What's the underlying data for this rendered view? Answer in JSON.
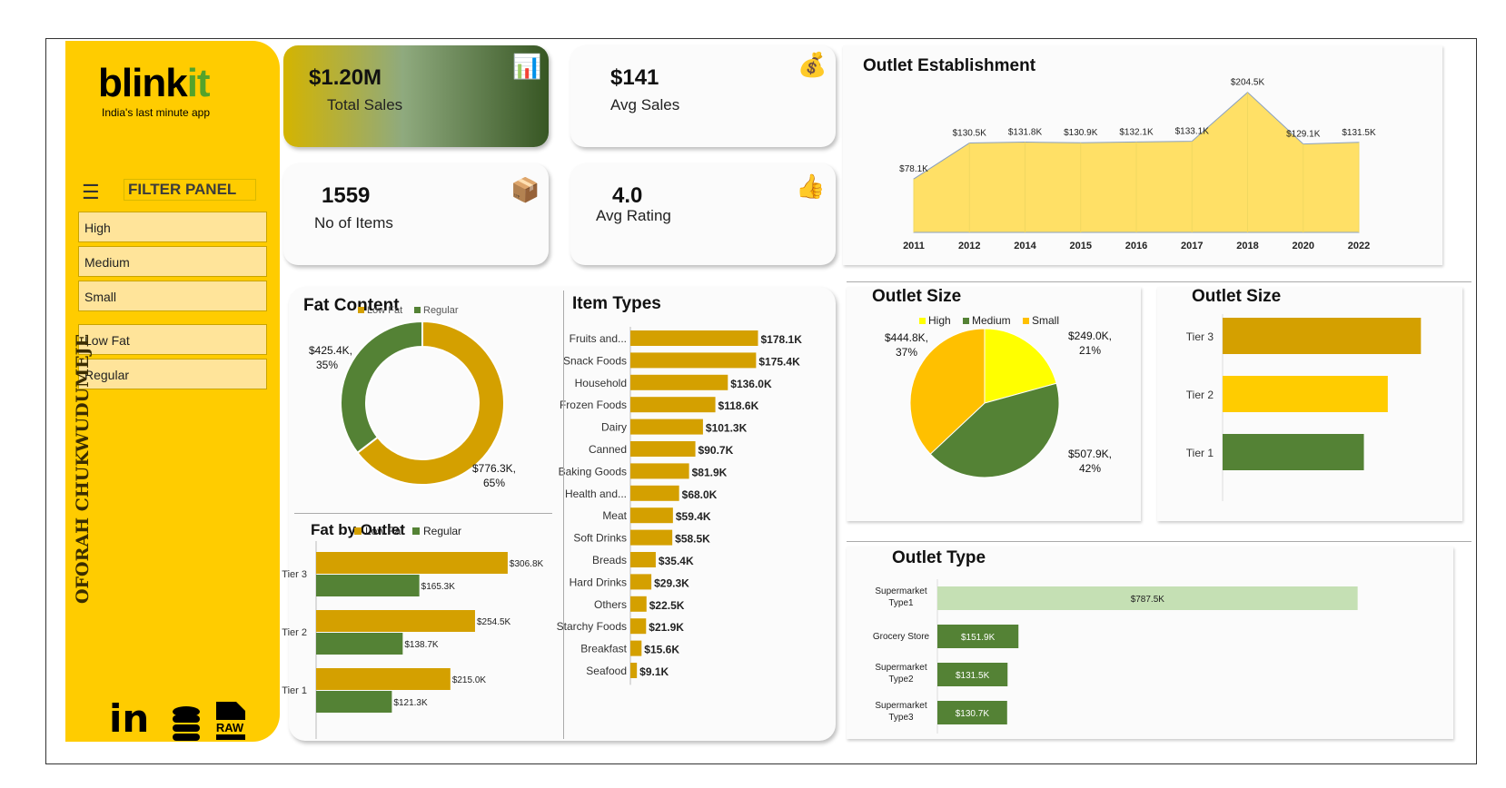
{
  "sidebar": {
    "brand": {
      "main": "blink",
      "accent": "it"
    },
    "tagline": "India's last minute app",
    "filter_title": "FILTER PANEL",
    "filters": [
      "High",
      "Medium",
      "Small",
      "Low Fat",
      "Regular"
    ],
    "author": "OFORAH CHUKWUDUMEJE",
    "social": {
      "linkedin": "in",
      "raw": "RAW"
    }
  },
  "kpis": {
    "total_sales": {
      "value": "$1.20M",
      "label": "Total Sales"
    },
    "avg_sales": {
      "value": "$141",
      "label": "Avg Sales"
    },
    "items": {
      "value": "1559",
      "label": "No of Items"
    },
    "rating": {
      "value": "4.0",
      "label": "Avg Rating"
    }
  },
  "colors": {
    "yellow": "#ffcc00",
    "gold": "#d4a000",
    "green": "#548235",
    "light_green": "#c5e0b4",
    "pale_yellow": "#ffe066",
    "bright_yellow": "#ffff00",
    "orange_yellow": "#ffc000"
  },
  "chart_data": [
    {
      "id": "outlet_establishment",
      "type": "area",
      "title": "Outlet Establishment",
      "categories": [
        "2011",
        "2012",
        "2014",
        "2015",
        "2016",
        "2017",
        "2018",
        "2020",
        "2022"
      ],
      "values": [
        78.1,
        130.5,
        131.8,
        130.9,
        132.1,
        133.1,
        204.5,
        129.1,
        131.5
      ],
      "labels": [
        "$78.1K",
        "$130.5K",
        "$131.8K",
        "$130.9K",
        "$132.1K",
        "$133.1K",
        "$204.5K",
        "$129.1K",
        "$131.5K"
      ],
      "ylim": [
        0,
        220
      ]
    },
    {
      "id": "fat_content",
      "type": "pie",
      "title": "Fat Content",
      "legend": [
        "Low Fat",
        "Regular"
      ],
      "values": [
        776.3,
        425.4
      ],
      "labels": [
        "$776.3K,",
        "$425.4K,"
      ],
      "percents": [
        "65%",
        "35%"
      ]
    },
    {
      "id": "fat_by_outlet",
      "type": "bar",
      "title": "Fat by Outlet",
      "categories": [
        "Tier 3",
        "Tier 2",
        "Tier 1"
      ],
      "series": [
        {
          "name": "Low Fat",
          "values": [
            306.8,
            254.5,
            215.0
          ],
          "labels": [
            "$306.8K",
            "$254.5K",
            "$215.0K"
          ]
        },
        {
          "name": "Regular",
          "values": [
            165.3,
            138.7,
            121.3
          ],
          "labels": [
            "$165.3K",
            "$138.7K",
            "$121.3K"
          ]
        }
      ],
      "xlim": [
        0,
        320
      ]
    },
    {
      "id": "item_types",
      "type": "bar",
      "title": "Item Types",
      "categories": [
        "Fruits and...",
        "Snack Foods",
        "Household",
        "Frozen Foods",
        "Dairy",
        "Canned",
        "Baking Goods",
        "Health and...",
        "Meat",
        "Soft Drinks",
        "Breads",
        "Hard Drinks",
        "Others",
        "Starchy Foods",
        "Breakfast",
        "Seafood"
      ],
      "values": [
        178.1,
        175.4,
        136.0,
        118.6,
        101.3,
        90.7,
        81.9,
        68.0,
        59.4,
        58.5,
        35.4,
        29.3,
        22.5,
        21.9,
        15.6,
        9.1
      ],
      "labels": [
        "$178.1K",
        "$175.4K",
        "$136.0K",
        "$118.6K",
        "$101.3K",
        "$90.7K",
        "$81.9K",
        "$68.0K",
        "$59.4K",
        "$58.5K",
        "$35.4K",
        "$29.3K",
        "$22.5K",
        "$21.9K",
        "$15.6K",
        "$9.1K"
      ],
      "xlim": [
        0,
        180
      ]
    },
    {
      "id": "outlet_size_pie",
      "type": "pie",
      "title": "Outlet Size",
      "legend": [
        "High",
        "Medium",
        "Small"
      ],
      "values": [
        249.0,
        507.9,
        444.8
      ],
      "labels": [
        "$249.0K,",
        "$507.9K,",
        "$444.8K,"
      ],
      "percents": [
        "21%",
        "42%",
        "37%"
      ]
    },
    {
      "id": "outlet_size_bar",
      "type": "bar",
      "title": "Outlet Size",
      "categories": [
        "Tier 3",
        "Tier 2",
        "Tier 1"
      ],
      "values": [
        472.1,
        393.2,
        336.3
      ],
      "xlim": [
        0,
        480
      ]
    },
    {
      "id": "outlet_type",
      "type": "bar",
      "title": "Outlet Type",
      "categories": [
        "Supermarket Type1",
        "Grocery Store",
        "Supermarket Type2",
        "Supermarket Type3"
      ],
      "values": [
        787.5,
        151.9,
        131.5,
        130.7
      ],
      "labels": [
        "$787.5K",
        "$151.9K",
        "$131.5K",
        "$130.7K"
      ],
      "xlim": [
        0,
        800
      ]
    }
  ]
}
